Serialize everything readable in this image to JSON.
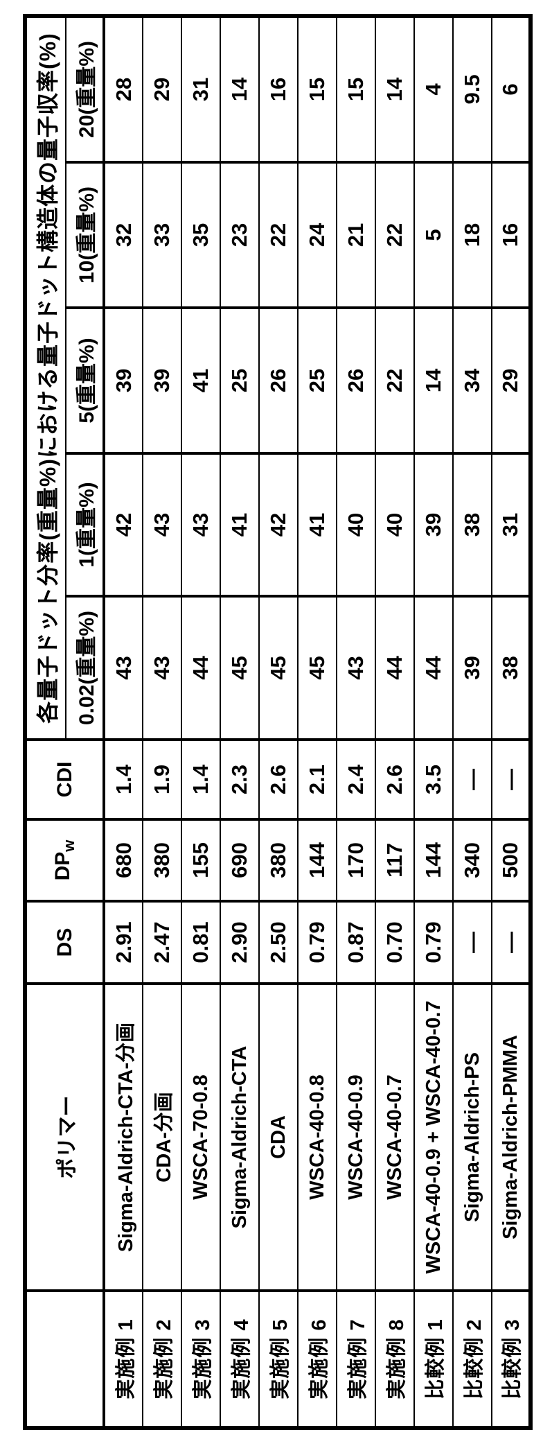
{
  "table": {
    "yield_group_header": "各量子ドット分率(重量%)における量子ドット構造体の量子収率(%)",
    "columns": {
      "row_label_header": "",
      "polymer": "ポリマー",
      "ds": "DS",
      "dpw_main": "DP",
      "dpw_sub": "w",
      "cdi": "CDI",
      "yield_fractions": [
        "0.02(重量%)",
        "1(重量%)",
        "5(重量%)",
        "10(重量%)",
        "20(重量%)"
      ]
    },
    "rows": [
      {
        "label": "実施例 1",
        "polymer": "Sigma-Aldrich-CTA-分画",
        "ds": "2.91",
        "dpw": "680",
        "cdi": "1.4",
        "yields": [
          "43",
          "42",
          "39",
          "32",
          "28"
        ]
      },
      {
        "label": "実施例 2",
        "polymer": "CDA-分画",
        "ds": "2.47",
        "dpw": "380",
        "cdi": "1.9",
        "yields": [
          "43",
          "43",
          "39",
          "33",
          "29"
        ]
      },
      {
        "label": "実施例 3",
        "polymer": "WSCA-70-0.8",
        "ds": "0.81",
        "dpw": "155",
        "cdi": "1.4",
        "yields": [
          "44",
          "43",
          "41",
          "35",
          "31"
        ]
      },
      {
        "label": "実施例 4",
        "polymer": "Sigma-Aldrich-CTA",
        "ds": "2.90",
        "dpw": "690",
        "cdi": "2.3",
        "yields": [
          "45",
          "41",
          "25",
          "23",
          "14"
        ]
      },
      {
        "label": "実施例 5",
        "polymer": "CDA",
        "ds": "2.50",
        "dpw": "380",
        "cdi": "2.6",
        "yields": [
          "45",
          "42",
          "26",
          "22",
          "16"
        ]
      },
      {
        "label": "実施例 6",
        "polymer": "WSCA-40-0.8",
        "ds": "0.79",
        "dpw": "144",
        "cdi": "2.1",
        "yields": [
          "45",
          "41",
          "25",
          "24",
          "15"
        ]
      },
      {
        "label": "実施例 7",
        "polymer": "WSCA-40-0.9",
        "ds": "0.87",
        "dpw": "170",
        "cdi": "2.4",
        "yields": [
          "43",
          "40",
          "26",
          "21",
          "15"
        ]
      },
      {
        "label": "実施例 8",
        "polymer": "WSCA-40-0.7",
        "ds": "0.70",
        "dpw": "117",
        "cdi": "2.6",
        "yields": [
          "44",
          "40",
          "22",
          "22",
          "14"
        ]
      },
      {
        "label": "比較例 1",
        "polymer": "WSCA-40-0.9 + WSCA-40-0.7",
        "ds": "0.79",
        "dpw": "144",
        "cdi": "3.5",
        "yields": [
          "44",
          "39",
          "14",
          "5",
          "4"
        ]
      },
      {
        "label": "比較例 2",
        "polymer": "Sigma-Aldrich-PS",
        "ds": "—",
        "dpw": "340",
        "cdi": "—",
        "yields": [
          "39",
          "38",
          "34",
          "18",
          "9.5"
        ]
      },
      {
        "label": "比較例 3",
        "polymer": "Sigma-Aldrich-PMMA",
        "ds": "—",
        "dpw": "500",
        "cdi": "—",
        "yields": [
          "38",
          "31",
          "29",
          "16",
          "6"
        ]
      }
    ]
  }
}
